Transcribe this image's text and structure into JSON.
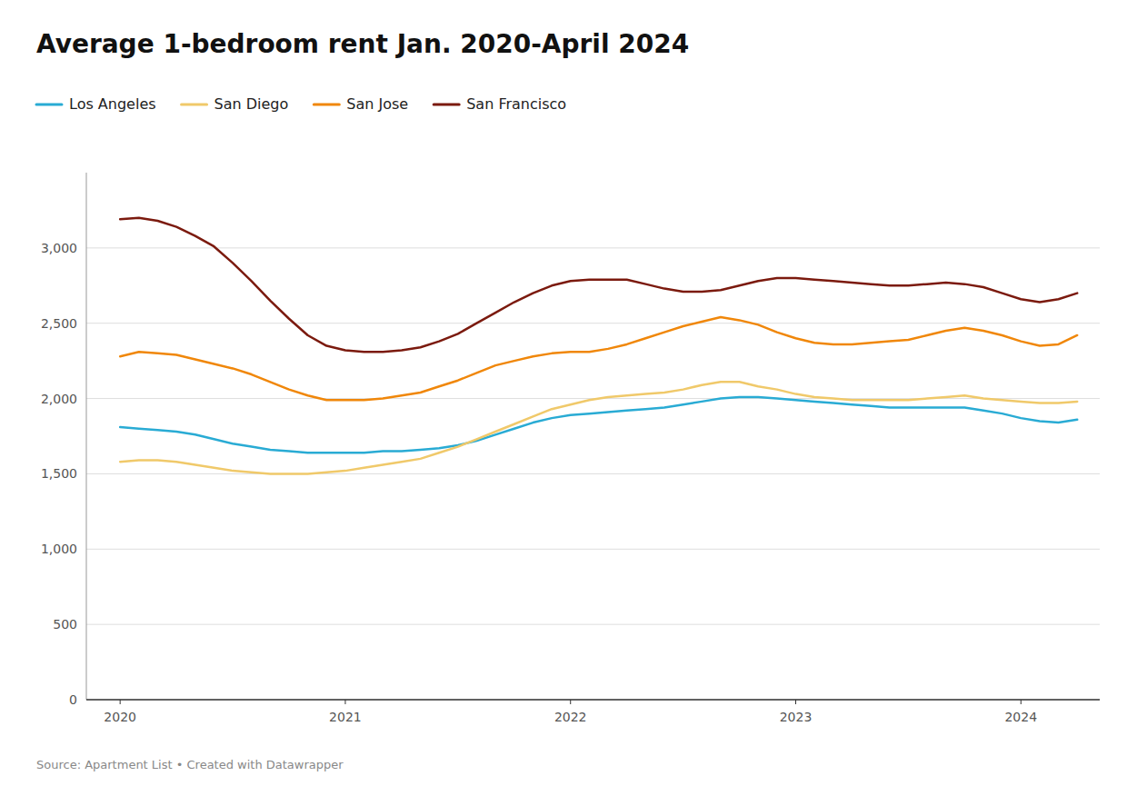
{
  "chart_data": {
    "type": "line",
    "title": "Average 1-bedroom rent Jan. 2020-April 2024",
    "source": "Source: Apartment List • Created with Datawrapper",
    "x": [
      2020,
      2020.0833333333333,
      2020.1666666666667,
      2020.25,
      2020.3333333333333,
      2020.4166666666667,
      2020.5,
      2020.5833333333333,
      2020.6666666666667,
      2020.75,
      2020.8333333333333,
      2020.9166666666667,
      2021,
      2021.0833333333333,
      2021.1666666666667,
      2021.25,
      2021.3333333333333,
      2021.4166666666667,
      2021.5,
      2021.5833333333333,
      2021.6666666666667,
      2021.75,
      2021.8333333333333,
      2021.9166666666667,
      2022,
      2022.0833333333333,
      2022.1666666666667,
      2022.25,
      2022.3333333333333,
      2022.4166666666667,
      2022.5,
      2022.5833333333333,
      2022.6666666666667,
      2022.75,
      2022.8333333333333,
      2022.9166666666667,
      2023,
      2023.0833333333333,
      2023.1666666666667,
      2023.25,
      2023.3333333333333,
      2023.4166666666667,
      2023.5,
      2023.5833333333333,
      2023.6666666666667,
      2023.75,
      2023.8333333333333,
      2023.9166666666667,
      2024,
      2024.0833333333333,
      2024.1666666666667,
      2024.25
    ],
    "xlim": [
      2019.85,
      2024.35
    ],
    "xticks": [
      2020,
      2021,
      2022,
      2023,
      2024
    ],
    "ylim": [
      0,
      3500
    ],
    "yticks": [
      0,
      500,
      {
        "value": 1000,
        "label": "1,000"
      },
      {
        "value": 1500,
        "label": "1,500"
      },
      {
        "value": 2000,
        "label": "2,000"
      },
      {
        "value": 2500,
        "label": "2,500"
      },
      {
        "value": 3000,
        "label": "3,000"
      }
    ],
    "grid": true,
    "legend": "top-left",
    "series": [
      {
        "name": "Los Angeles",
        "color": "#29ABD4",
        "values": [
          1810,
          1800,
          1790,
          1780,
          1760,
          1730,
          1700,
          1680,
          1660,
          1650,
          1640,
          1640,
          1640,
          1640,
          1650,
          1650,
          1660,
          1670,
          1690,
          1720,
          1760,
          1800,
          1840,
          1870,
          1890,
          1900,
          1910,
          1920,
          1930,
          1940,
          1960,
          1980,
          2000,
          2010,
          2010,
          2000,
          1990,
          1980,
          1970,
          1960,
          1950,
          1940,
          1940,
          1940,
          1940,
          1940,
          1920,
          1900,
          1870,
          1850,
          1840,
          1860
        ]
      },
      {
        "name": "San Diego",
        "color": "#F0C96A",
        "values": [
          1580,
          1590,
          1590,
          1580,
          1560,
          1540,
          1520,
          1510,
          1500,
          1500,
          1500,
          1510,
          1520,
          1540,
          1560,
          1580,
          1600,
          1640,
          1680,
          1730,
          1780,
          1830,
          1880,
          1930,
          1960,
          1990,
          2010,
          2020,
          2030,
          2040,
          2060,
          2090,
          2110,
          2110,
          2080,
          2060,
          2030,
          2010,
          2000,
          1990,
          1990,
          1990,
          1990,
          2000,
          2010,
          2020,
          2000,
          1990,
          1980,
          1970,
          1970,
          1980
        ]
      },
      {
        "name": "San Jose",
        "color": "#F0870A",
        "values": [
          2280,
          2310,
          2300,
          2290,
          2260,
          2230,
          2200,
          2160,
          2110,
          2060,
          2020,
          1990,
          1990,
          1990,
          2000,
          2020,
          2040,
          2080,
          2120,
          2170,
          2220,
          2250,
          2280,
          2300,
          2310,
          2310,
          2330,
          2360,
          2400,
          2440,
          2480,
          2510,
          2540,
          2520,
          2490,
          2440,
          2400,
          2370,
          2360,
          2360,
          2370,
          2380,
          2390,
          2420,
          2450,
          2470,
          2450,
          2420,
          2380,
          2350,
          2360,
          2420
        ]
      },
      {
        "name": "San Francisco",
        "color": "#7B1A0E",
        "values": [
          3190,
          3200,
          3180,
          3140,
          3080,
          3010,
          2900,
          2780,
          2650,
          2530,
          2420,
          2350,
          2320,
          2310,
          2310,
          2320,
          2340,
          2380,
          2430,
          2500,
          2570,
          2640,
          2700,
          2750,
          2780,
          2790,
          2790,
          2790,
          2760,
          2730,
          2710,
          2710,
          2720,
          2750,
          2780,
          2800,
          2800,
          2790,
          2780,
          2770,
          2760,
          2750,
          2750,
          2760,
          2770,
          2760,
          2740,
          2700,
          2660,
          2640,
          2660,
          2700
        ]
      }
    ]
  }
}
